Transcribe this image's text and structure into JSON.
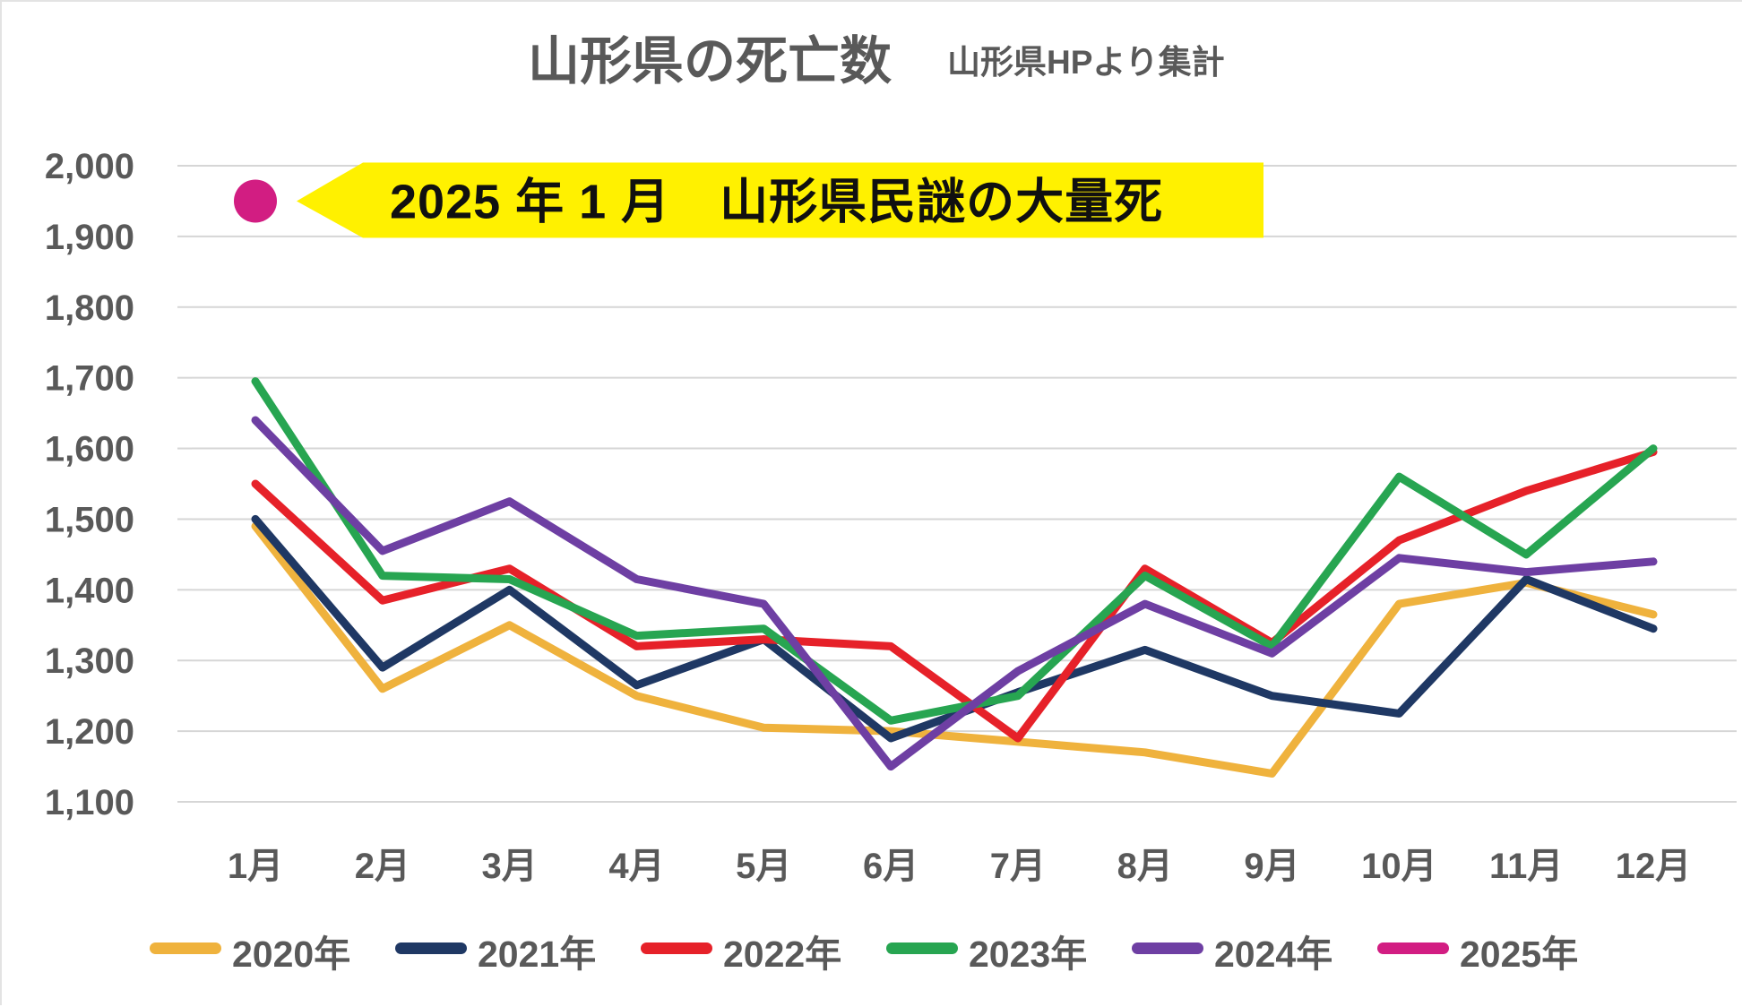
{
  "title": "山形県の死亡数",
  "subtitle": "山形県HPより集計",
  "annotation": {
    "text": "2025 年 1 月　山形県民謎の大量死",
    "highlight_color": "#FFF100",
    "text_color": "#101010",
    "marker_color": "#D21D82",
    "marker_month": "1月",
    "marker_value": 1950
  },
  "chart_data": {
    "type": "line",
    "title": "山形県の死亡数",
    "subtitle": "山形県HPより集計",
    "categories": [
      "1月",
      "2月",
      "3月",
      "4月",
      "5月",
      "6月",
      "7月",
      "8月",
      "9月",
      "10月",
      "11月",
      "12月"
    ],
    "series": [
      {
        "name": "2020年",
        "color": "#EFB23D",
        "values": [
          1490,
          1260,
          1350,
          1250,
          1205,
          1200,
          1185,
          1170,
          1140,
          1380,
          1410,
          1365
        ]
      },
      {
        "name": "2021年",
        "color": "#1F3864",
        "values": [
          1500,
          1290,
          1400,
          1265,
          1330,
          1190,
          1255,
          1315,
          1250,
          1225,
          1415,
          1345
        ]
      },
      {
        "name": "2022年",
        "color": "#E62129",
        "values": [
          1550,
          1385,
          1430,
          1320,
          1330,
          1320,
          1190,
          1430,
          1325,
          1470,
          1540,
          1595
        ]
      },
      {
        "name": "2023年",
        "color": "#27A551",
        "values": [
          1695,
          1420,
          1415,
          1335,
          1345,
          1215,
          1250,
          1420,
          1320,
          1560,
          1450,
          1600
        ]
      },
      {
        "name": "2024年",
        "color": "#6E3FA3",
        "values": [
          1640,
          1455,
          1525,
          1415,
          1380,
          1150,
          1285,
          1380,
          1310,
          1445,
          1425,
          1440
        ]
      },
      {
        "name": "2025年",
        "color": "#D21D82",
        "values": [
          1950,
          null,
          null,
          null,
          null,
          null,
          null,
          null,
          null,
          null,
          null,
          null
        ]
      }
    ],
    "ylim": [
      1100,
      2000
    ],
    "ytick_step": 100,
    "ytick_labels": [
      "1,100",
      "1,200",
      "1,300",
      "1,400",
      "1,500",
      "1,600",
      "1,700",
      "1,800",
      "1,900",
      "2,000"
    ],
    "grid": true,
    "gridline_color": "#D6D6D6",
    "axis_label_color": "#595959",
    "legend_position": "bottom"
  }
}
